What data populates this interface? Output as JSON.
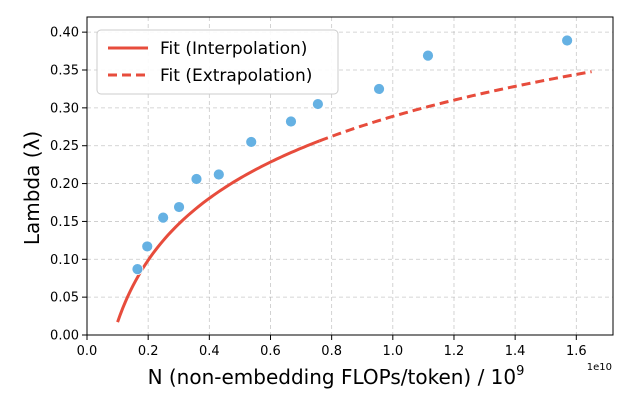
{
  "chart_data": {
    "type": "scatter",
    "xlabel": "N (non-embedding FLOPs/token) / 10",
    "xlabel_superscript": "9",
    "ylabel": "Lambda (λ)",
    "x_offset_label": "1e10",
    "xlim": [
      0.0,
      1.72
    ],
    "ylim": [
      0.0,
      0.42
    ],
    "x_ticks": [
      0.0,
      0.2,
      0.4,
      0.6,
      0.8,
      1.0,
      1.2,
      1.4,
      1.6
    ],
    "x_tick_labels": [
      "0.0",
      "0.2",
      "0.4",
      "0.6",
      "0.8",
      "1.0",
      "1.2",
      "1.4",
      "1.6"
    ],
    "y_ticks": [
      0.0,
      0.05,
      0.1,
      0.15,
      0.2,
      0.25,
      0.3,
      0.35,
      0.4
    ],
    "y_tick_labels": [
      "0.00",
      "0.05",
      "0.10",
      "0.15",
      "0.20",
      "0.25",
      "0.30",
      "0.35",
      "0.40"
    ],
    "grid": true,
    "legend_position": "top-left",
    "points": {
      "color": "#5dade2",
      "x": [
        0.165,
        0.197,
        0.249,
        0.301,
        0.358,
        0.431,
        0.537,
        0.667,
        0.755,
        0.955,
        1.115,
        1.57
      ],
      "y": [
        0.087,
        0.117,
        0.155,
        0.169,
        0.206,
        0.212,
        0.255,
        0.282,
        0.305,
        0.325,
        0.369,
        0.389
      ]
    },
    "fit": {
      "model": "a + b*ln(x)",
      "a": 0.2887,
      "b": 0.118,
      "interp_range": [
        0.1,
        0.76
      ],
      "extrap_range": [
        0.76,
        1.65
      ],
      "color": "#e74c3c"
    },
    "legend": [
      {
        "label": "Fit (Interpolation)",
        "style": "solid"
      },
      {
        "label": "Fit (Extrapolation)",
        "style": "dashed"
      }
    ]
  }
}
